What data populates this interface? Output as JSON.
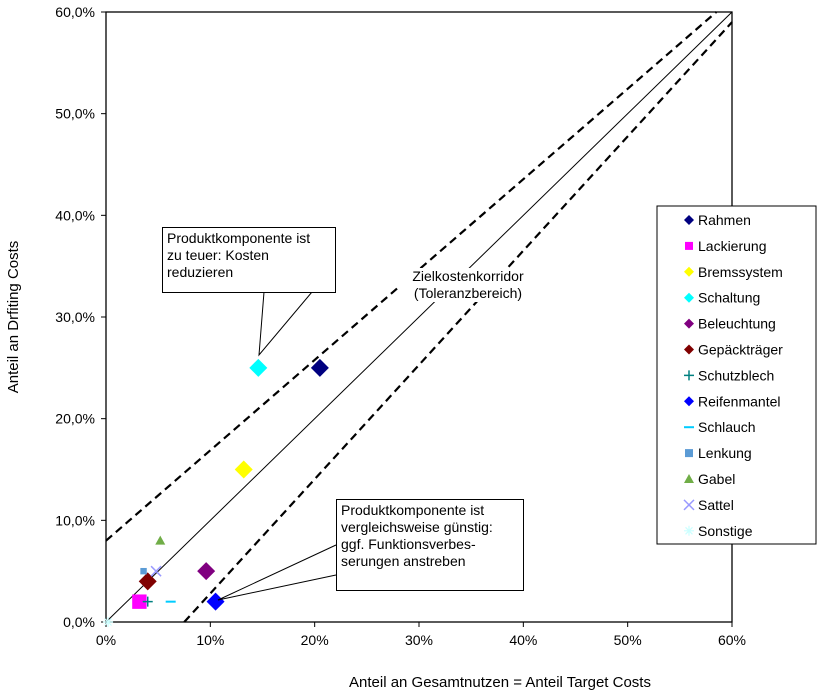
{
  "chart_data": {
    "type": "scatter",
    "title": "",
    "xlabel": "Anteil an Gesamtnutzen = Anteil Target Costs",
    "ylabel": "Anteil an Drfiting Costs",
    "xlim": [
      0,
      60
    ],
    "ylim": [
      0,
      60
    ],
    "x_ticks": [
      "0%",
      "10%",
      "20%",
      "30%",
      "40%",
      "50%",
      "60%"
    ],
    "y_ticks": [
      "0,0%",
      "10,0%",
      "20,0%",
      "30,0%",
      "40,0%",
      "50,0%",
      "60,0%"
    ],
    "grid": false,
    "legend_position": "right",
    "series": [
      {
        "name": "Rahmen",
        "marker": "diamond",
        "color": "#000080",
        "x": [
          20.5
        ],
        "y": [
          25
        ]
      },
      {
        "name": "Lackierung",
        "marker": "square",
        "color": "#ff00ff",
        "x": [
          3.2
        ],
        "y": [
          2
        ]
      },
      {
        "name": "Bremssystem",
        "marker": "diamond",
        "color": "#ffff00",
        "x": [
          13.2
        ],
        "y": [
          15
        ]
      },
      {
        "name": "Schaltung",
        "marker": "diamond",
        "color": "#00ffff",
        "x": [
          14.6
        ],
        "y": [
          25
        ]
      },
      {
        "name": "Beleuchtung",
        "marker": "diamond",
        "color": "#800080",
        "x": [
          9.6
        ],
        "y": [
          5
        ]
      },
      {
        "name": "Gepäckträger",
        "marker": "diamond",
        "color": "#800000",
        "x": [
          4.0
        ],
        "y": [
          4
        ]
      },
      {
        "name": "Schutzblech",
        "marker": "plus",
        "color": "#008080",
        "x": [
          4.0
        ],
        "y": [
          2
        ]
      },
      {
        "name": "Reifenmantel",
        "marker": "diamond",
        "color": "#0000ff",
        "x": [
          10.5
        ],
        "y": [
          2
        ]
      },
      {
        "name": "Schlauch",
        "marker": "dash",
        "color": "#00ccff",
        "x": [
          6.2
        ],
        "y": [
          2
        ]
      },
      {
        "name": "Lenkung",
        "marker": "square",
        "color": "#5b9bd5",
        "x": [
          3.6
        ],
        "y": [
          5
        ]
      },
      {
        "name": "Gabel",
        "marker": "triangle",
        "color": "#70ad47",
        "x": [
          5.2
        ],
        "y": [
          8
        ]
      },
      {
        "name": "Sattel",
        "marker": "x",
        "color": "#9999ff",
        "x": [
          4.8
        ],
        "y": [
          5
        ]
      },
      {
        "name": "Sonstige",
        "marker": "star",
        "color": "#ccffff",
        "x": [
          0.2
        ],
        "y": [
          0
        ]
      }
    ],
    "reference_lines": [
      {
        "style": "solid",
        "from": [
          0,
          0
        ],
        "to": [
          60,
          60
        ]
      },
      {
        "style": "dashed",
        "from": [
          0,
          8
        ],
        "to": [
          58.5,
          60
        ]
      },
      {
        "style": "dashed",
        "from": [
          7.5,
          0
        ],
        "to": [
          60,
          59
        ]
      }
    ],
    "annotations": {
      "too_expensive": "Produktkomponente ist\nzu teuer: Kosten\nreduzieren",
      "corridor": "Zielkostenkorridor\n(Toleranzbereich)",
      "favorable": "Produktkomponente ist\nvergleichsweise günstig:\nggf. Funktionsverbes-\nserungen anstreben"
    }
  }
}
